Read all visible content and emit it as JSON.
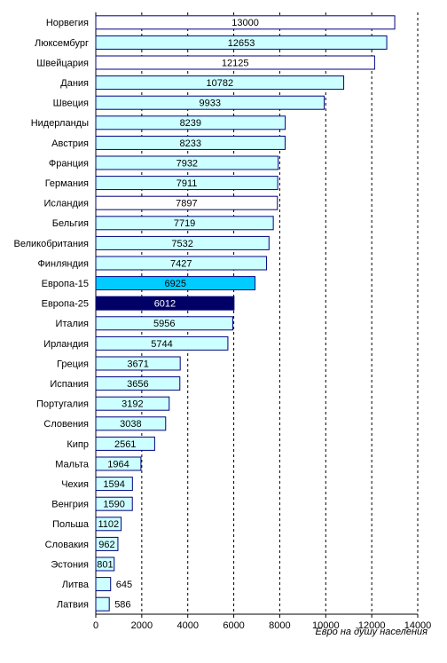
{
  "chart_data": {
    "type": "bar",
    "orientation": "horizontal",
    "x_label": "Евро на душу населения",
    "categories": [
      "Норвегия",
      "Люксембург",
      "Швейцария",
      "Дания",
      "Швеция",
      "Нидерланды",
      "Австрия",
      "Франция",
      "Германия",
      "Исландия",
      "Бельгия",
      "Великобритания",
      "Финляндия",
      "Европа-15",
      "Европа-25",
      "Италия",
      "Ирландия",
      "Греция",
      "Испания",
      "Португалия",
      "Словения",
      "Кипр",
      "Мальта",
      "Чехия",
      "Венгрия",
      "Польша",
      "Словакия",
      "Эстония",
      "Литва",
      "Латвия"
    ],
    "values": [
      13000,
      12653,
      12125,
      10782,
      9933,
      8239,
      8233,
      7932,
      7911,
      7897,
      7719,
      7532,
      7427,
      6925,
      6012,
      5956,
      5744,
      3671,
      3656,
      3192,
      3038,
      2561,
      1964,
      1594,
      1590,
      1102,
      962,
      801,
      645,
      586
    ],
    "colors": [
      "#ffffff",
      "#ccffff",
      "#ffffff",
      "#ccffff",
      "#ccffff",
      "#ccffff",
      "#ccffff",
      "#ccffff",
      "#ccffff",
      "#ffffff",
      "#ccffff",
      "#ccffff",
      "#ccffff",
      "#00ccff",
      "#000066",
      "#ccffff",
      "#ccffff",
      "#ccffff",
      "#ccffff",
      "#ccffff",
      "#ccffff",
      "#ccffff",
      "#ccffff",
      "#ccffff",
      "#ccffff",
      "#ccffff",
      "#ccffff",
      "#ccffff",
      "#ccffff",
      "#ccffff"
    ],
    "label_colors": {
      "#000066": "#ffffff"
    },
    "edge_color": "#000080",
    "xlim": [
      0,
      14000
    ],
    "xticks": [
      0,
      2000,
      4000,
      6000,
      8000,
      10000,
      12000,
      14000
    ],
    "grid": true
  }
}
